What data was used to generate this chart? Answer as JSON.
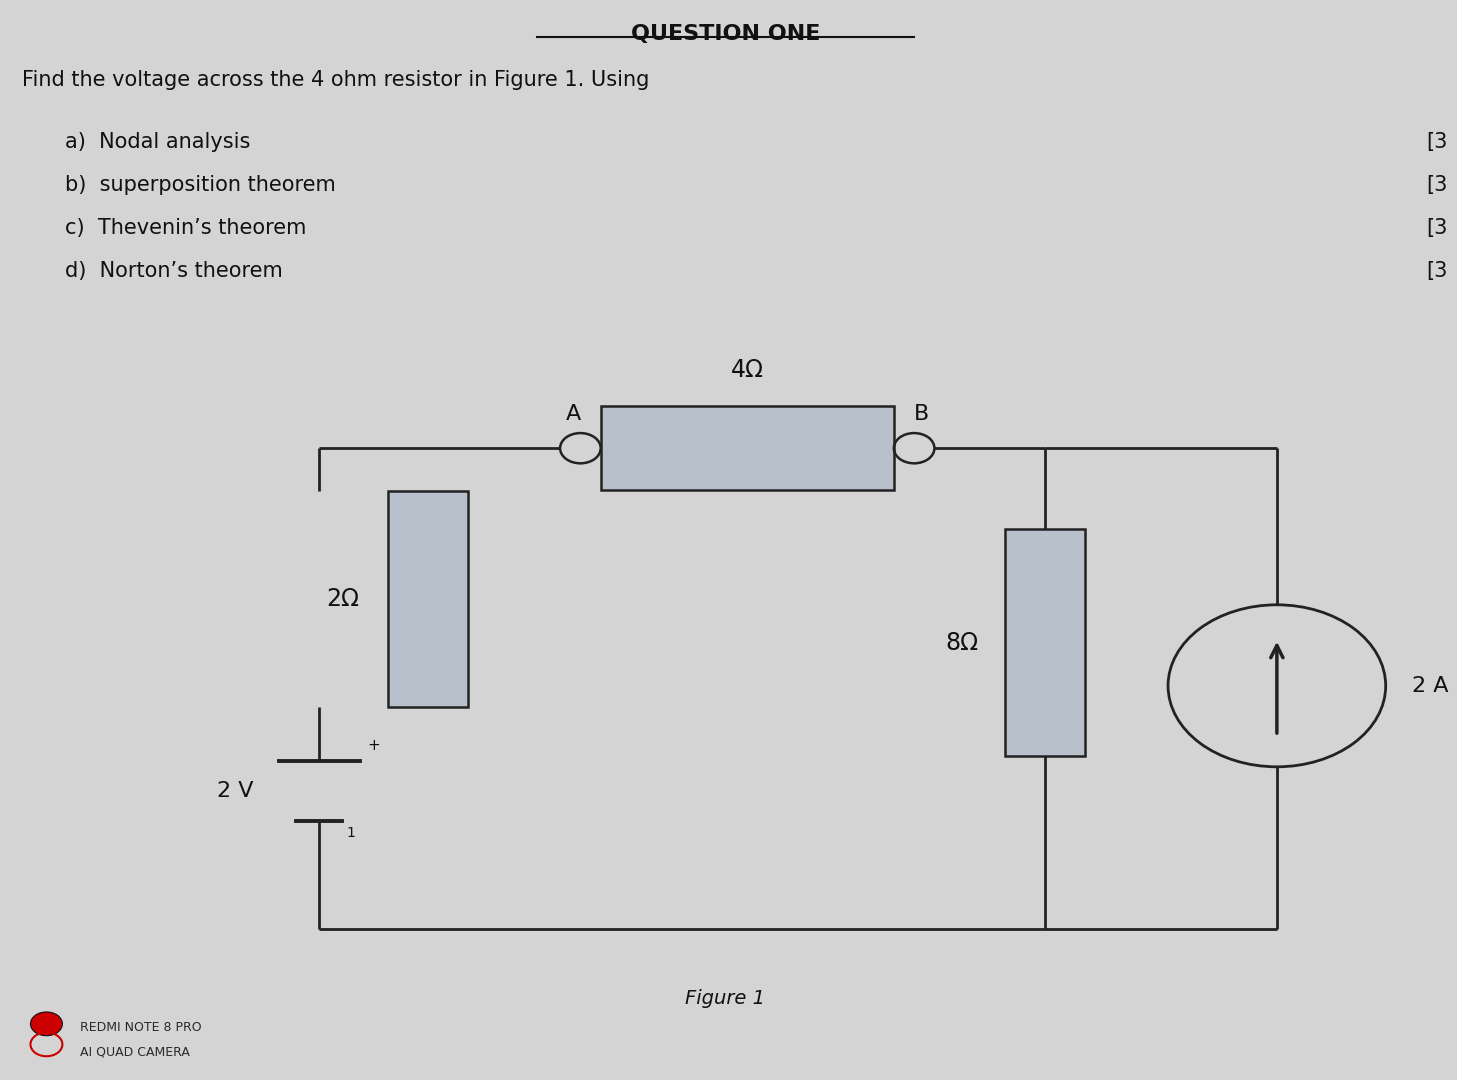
{
  "title": "QUESTION ONE",
  "problem_text": "Find the voltage across the 4 ohm resistor in Figure 1. Using",
  "items": [
    "a)  Nodal analysis",
    "b)  superposition theorem",
    "c)  Thevenin’s theorem",
    "d)  Norton’s theorem"
  ],
  "figure_caption": "Figure 1",
  "bg_color": "#d4d4d4",
  "line_color": "#222222",
  "resistor_fill": "#b8c0cc",
  "text_color": "#111111",
  "circuit": {
    "resistor_4_label": "4Ω",
    "resistor_2_label": "2Ω",
    "resistor_8_label": "8Ω",
    "voltage_label": "2 V",
    "current_label": "2 A",
    "node_A_label": "A",
    "node_B_label": "B"
  },
  "redmi_line1": "REDMI NOTE 8 PRO",
  "redmi_line2": "AI QUAD CAMERA"
}
